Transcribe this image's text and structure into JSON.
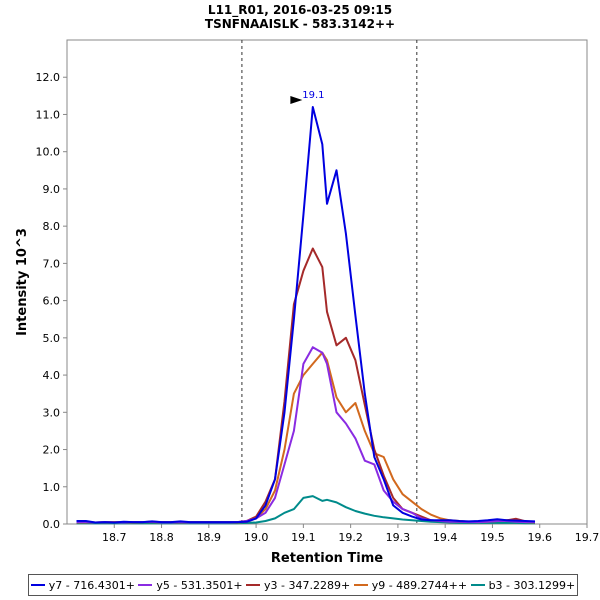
{
  "title_line1": "L11_R01, 2016-03-25 09:15",
  "title_line2": "TSNFNAAISLK - 583.3142++",
  "chart_data": {
    "type": "line",
    "xlabel": "Retention Time",
    "ylabel": "Intensity 10^3",
    "xlim": [
      18.6,
      19.7
    ],
    "ylim": [
      0,
      13
    ],
    "x_ticks": [
      "18.7",
      "18.8",
      "18.9",
      "19.0",
      "19.1",
      "19.2",
      "19.3",
      "19.4",
      "19.5",
      "19.6",
      "19.7"
    ],
    "y_ticks": [
      "0.0",
      "1.0",
      "2.0",
      "3.0",
      "4.0",
      "5.0",
      "6.0",
      "7.0",
      "8.0",
      "9.0",
      "10.0",
      "11.0",
      "12.0"
    ],
    "integration_bounds": [
      18.97,
      19.34
    ],
    "peak_annotation": {
      "label": "19.1",
      "x": 19.1,
      "y": 11.2
    },
    "legend_position": "bottom",
    "series": [
      {
        "name": "y7 - 716.4301+",
        "color": "#0000e0",
        "points": [
          [
            18.62,
            0.08
          ],
          [
            18.64,
            0.08
          ],
          [
            18.66,
            0.04
          ],
          [
            18.68,
            0.05
          ],
          [
            18.7,
            0.04
          ],
          [
            18.72,
            0.06
          ],
          [
            18.74,
            0.05
          ],
          [
            18.76,
            0.05
          ],
          [
            18.78,
            0.07
          ],
          [
            18.8,
            0.05
          ],
          [
            18.82,
            0.05
          ],
          [
            18.84,
            0.07
          ],
          [
            18.86,
            0.05
          ],
          [
            18.88,
            0.05
          ],
          [
            18.9,
            0.05
          ],
          [
            18.92,
            0.05
          ],
          [
            18.94,
            0.05
          ],
          [
            18.96,
            0.05
          ],
          [
            18.98,
            0.06
          ],
          [
            19.0,
            0.15
          ],
          [
            19.02,
            0.5
          ],
          [
            19.04,
            1.2
          ],
          [
            19.06,
            3.0
          ],
          [
            19.08,
            5.5
          ],
          [
            19.1,
            8.3
          ],
          [
            19.12,
            11.2
          ],
          [
            19.14,
            10.2
          ],
          [
            19.15,
            8.6
          ],
          [
            19.17,
            9.5
          ],
          [
            19.19,
            7.8
          ],
          [
            19.21,
            5.6
          ],
          [
            19.23,
            3.5
          ],
          [
            19.25,
            1.8
          ],
          [
            19.27,
            1.2
          ],
          [
            19.29,
            0.5
          ],
          [
            19.31,
            0.3
          ],
          [
            19.33,
            0.2
          ],
          [
            19.35,
            0.12
          ],
          [
            19.37,
            0.1
          ],
          [
            19.39,
            0.1
          ],
          [
            19.41,
            0.1
          ],
          [
            19.43,
            0.08
          ],
          [
            19.45,
            0.07
          ],
          [
            19.47,
            0.08
          ],
          [
            19.49,
            0.1
          ],
          [
            19.51,
            0.13
          ],
          [
            19.53,
            0.1
          ],
          [
            19.55,
            0.09
          ],
          [
            19.57,
            0.08
          ],
          [
            19.59,
            0.07
          ]
        ]
      },
      {
        "name": "y5 - 531.3501+",
        "color": "#8a2be2",
        "points": [
          [
            18.62,
            0.05
          ],
          [
            18.64,
            0.05
          ],
          [
            18.66,
            0.04
          ],
          [
            18.68,
            0.05
          ],
          [
            18.7,
            0.04
          ],
          [
            18.72,
            0.04
          ],
          [
            18.74,
            0.05
          ],
          [
            18.76,
            0.05
          ],
          [
            18.78,
            0.06
          ],
          [
            18.8,
            0.04
          ],
          [
            18.82,
            0.04
          ],
          [
            18.84,
            0.05
          ],
          [
            18.86,
            0.04
          ],
          [
            18.88,
            0.04
          ],
          [
            18.9,
            0.04
          ],
          [
            18.92,
            0.04
          ],
          [
            18.94,
            0.04
          ],
          [
            18.96,
            0.05
          ],
          [
            18.98,
            0.08
          ],
          [
            19.0,
            0.15
          ],
          [
            19.02,
            0.3
          ],
          [
            19.04,
            0.7
          ],
          [
            19.06,
            1.6
          ],
          [
            19.08,
            2.5
          ],
          [
            19.1,
            4.3
          ],
          [
            19.12,
            4.75
          ],
          [
            19.14,
            4.6
          ],
          [
            19.15,
            4.3
          ],
          [
            19.17,
            3.0
          ],
          [
            19.19,
            2.7
          ],
          [
            19.21,
            2.3
          ],
          [
            19.23,
            1.7
          ],
          [
            19.25,
            1.6
          ],
          [
            19.27,
            0.9
          ],
          [
            19.29,
            0.6
          ],
          [
            19.31,
            0.4
          ],
          [
            19.33,
            0.3
          ],
          [
            19.35,
            0.15
          ],
          [
            19.37,
            0.1
          ],
          [
            19.39,
            0.08
          ],
          [
            19.41,
            0.06
          ],
          [
            19.43,
            0.06
          ],
          [
            19.45,
            0.05
          ],
          [
            19.47,
            0.05
          ],
          [
            19.49,
            0.06
          ],
          [
            19.51,
            0.08
          ],
          [
            19.53,
            0.08
          ],
          [
            19.55,
            0.06
          ],
          [
            19.57,
            0.05
          ],
          [
            19.59,
            0.05
          ]
        ]
      },
      {
        "name": "y3 - 347.2289+",
        "color": "#a52a2a",
        "points": [
          [
            18.62,
            0.05
          ],
          [
            18.64,
            0.05
          ],
          [
            18.66,
            0.04
          ],
          [
            18.68,
            0.05
          ],
          [
            18.7,
            0.05
          ],
          [
            18.72,
            0.05
          ],
          [
            18.74,
            0.05
          ],
          [
            18.76,
            0.05
          ],
          [
            18.78,
            0.06
          ],
          [
            18.8,
            0.05
          ],
          [
            18.82,
            0.05
          ],
          [
            18.84,
            0.05
          ],
          [
            18.86,
            0.05
          ],
          [
            18.88,
            0.05
          ],
          [
            18.9,
            0.05
          ],
          [
            18.92,
            0.05
          ],
          [
            18.94,
            0.05
          ],
          [
            18.96,
            0.05
          ],
          [
            18.98,
            0.08
          ],
          [
            19.0,
            0.2
          ],
          [
            19.02,
            0.6
          ],
          [
            19.04,
            1.2
          ],
          [
            19.06,
            3.3
          ],
          [
            19.08,
            5.9
          ],
          [
            19.1,
            6.8
          ],
          [
            19.12,
            7.4
          ],
          [
            19.14,
            6.9
          ],
          [
            19.15,
            5.7
          ],
          [
            19.17,
            4.8
          ],
          [
            19.19,
            5.0
          ],
          [
            19.21,
            4.4
          ],
          [
            19.23,
            3.2
          ],
          [
            19.25,
            2.0
          ],
          [
            19.27,
            1.3
          ],
          [
            19.29,
            0.7
          ],
          [
            19.31,
            0.4
          ],
          [
            19.33,
            0.3
          ],
          [
            19.35,
            0.2
          ],
          [
            19.37,
            0.1
          ],
          [
            19.39,
            0.08
          ],
          [
            19.41,
            0.07
          ],
          [
            19.43,
            0.06
          ],
          [
            19.45,
            0.05
          ],
          [
            19.47,
            0.06
          ],
          [
            19.49,
            0.07
          ],
          [
            19.51,
            0.08
          ],
          [
            19.53,
            0.1
          ],
          [
            19.55,
            0.14
          ],
          [
            19.57,
            0.07
          ],
          [
            19.59,
            0.05
          ]
        ]
      },
      {
        "name": "y9 - 489.2744++",
        "color": "#d2691e",
        "points": [
          [
            18.62,
            0.04
          ],
          [
            18.64,
            0.04
          ],
          [
            18.66,
            0.04
          ],
          [
            18.68,
            0.04
          ],
          [
            18.7,
            0.04
          ],
          [
            18.72,
            0.04
          ],
          [
            18.74,
            0.04
          ],
          [
            18.76,
            0.05
          ],
          [
            18.78,
            0.05
          ],
          [
            18.8,
            0.04
          ],
          [
            18.82,
            0.04
          ],
          [
            18.84,
            0.04
          ],
          [
            18.86,
            0.04
          ],
          [
            18.88,
            0.04
          ],
          [
            18.9,
            0.04
          ],
          [
            18.92,
            0.04
          ],
          [
            18.94,
            0.04
          ],
          [
            18.96,
            0.04
          ],
          [
            18.98,
            0.06
          ],
          [
            19.0,
            0.15
          ],
          [
            19.02,
            0.4
          ],
          [
            19.04,
            0.9
          ],
          [
            19.06,
            2.0
          ],
          [
            19.08,
            3.5
          ],
          [
            19.1,
            4.0
          ],
          [
            19.12,
            4.3
          ],
          [
            19.14,
            4.6
          ],
          [
            19.15,
            4.4
          ],
          [
            19.17,
            3.4
          ],
          [
            19.19,
            3.0
          ],
          [
            19.21,
            3.25
          ],
          [
            19.23,
            2.5
          ],
          [
            19.25,
            1.9
          ],
          [
            19.27,
            1.8
          ],
          [
            19.29,
            1.2
          ],
          [
            19.31,
            0.8
          ],
          [
            19.33,
            0.6
          ],
          [
            19.35,
            0.4
          ],
          [
            19.37,
            0.25
          ],
          [
            19.39,
            0.15
          ],
          [
            19.41,
            0.1
          ],
          [
            19.43,
            0.08
          ],
          [
            19.45,
            0.06
          ],
          [
            19.47,
            0.05
          ],
          [
            19.49,
            0.06
          ],
          [
            19.51,
            0.08
          ],
          [
            19.53,
            0.1
          ],
          [
            19.55,
            0.07
          ],
          [
            19.57,
            0.05
          ],
          [
            19.59,
            0.04
          ]
        ]
      },
      {
        "name": "b3 - 303.1299+",
        "color": "#008b8b",
        "points": [
          [
            18.62,
            0.02
          ],
          [
            18.64,
            0.02
          ],
          [
            18.66,
            0.02
          ],
          [
            18.68,
            0.02
          ],
          [
            18.7,
            0.02
          ],
          [
            18.72,
            0.02
          ],
          [
            18.74,
            0.02
          ],
          [
            18.76,
            0.02
          ],
          [
            18.78,
            0.02
          ],
          [
            18.8,
            0.02
          ],
          [
            18.82,
            0.02
          ],
          [
            18.84,
            0.02
          ],
          [
            18.86,
            0.02
          ],
          [
            18.88,
            0.02
          ],
          [
            18.9,
            0.02
          ],
          [
            18.92,
            0.02
          ],
          [
            18.94,
            0.02
          ],
          [
            18.96,
            0.02
          ],
          [
            18.98,
            0.03
          ],
          [
            19.0,
            0.04
          ],
          [
            19.02,
            0.08
          ],
          [
            19.04,
            0.15
          ],
          [
            19.06,
            0.3
          ],
          [
            19.08,
            0.4
          ],
          [
            19.1,
            0.7
          ],
          [
            19.12,
            0.75
          ],
          [
            19.14,
            0.62
          ],
          [
            19.15,
            0.65
          ],
          [
            19.17,
            0.58
          ],
          [
            19.19,
            0.45
          ],
          [
            19.21,
            0.35
          ],
          [
            19.23,
            0.28
          ],
          [
            19.25,
            0.22
          ],
          [
            19.27,
            0.18
          ],
          [
            19.29,
            0.15
          ],
          [
            19.31,
            0.12
          ],
          [
            19.33,
            0.1
          ],
          [
            19.35,
            0.08
          ],
          [
            19.37,
            0.06
          ],
          [
            19.39,
            0.05
          ],
          [
            19.41,
            0.04
          ],
          [
            19.43,
            0.03
          ],
          [
            19.45,
            0.03
          ],
          [
            19.47,
            0.03
          ],
          [
            19.49,
            0.03
          ],
          [
            19.51,
            0.03
          ],
          [
            19.53,
            0.03
          ],
          [
            19.55,
            0.03
          ],
          [
            19.57,
            0.02
          ],
          [
            19.59,
            0.02
          ]
        ]
      }
    ]
  }
}
